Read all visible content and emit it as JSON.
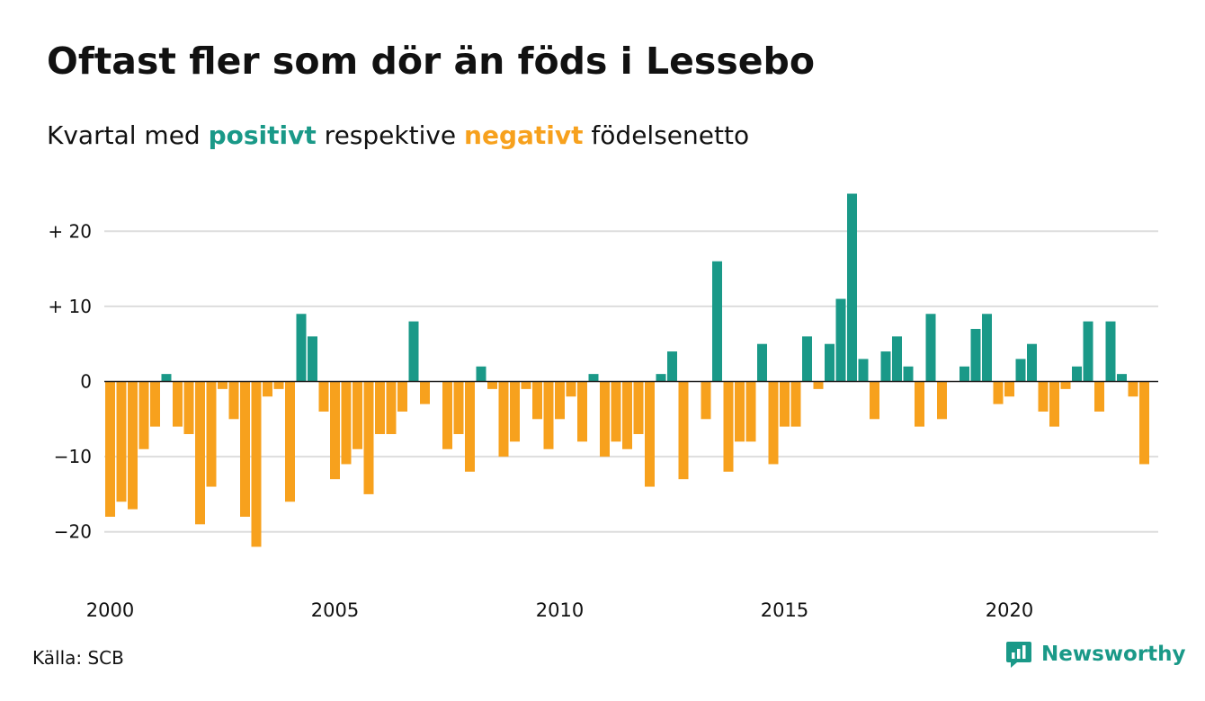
{
  "chart_data": {
    "type": "bar",
    "title": "Oftast fler som dör än föds i Lessebo",
    "subtitle": {
      "prefix": "Kvartal med ",
      "positive_word": "positivt",
      "middle": " respektive ",
      "negative_word": "negativt",
      "suffix": " födelsenetto"
    },
    "x_start_year": 2000,
    "periods_per_year": 4,
    "values": [
      -18,
      -16,
      -17,
      -9,
      -6,
      1,
      -6,
      -7,
      -19,
      -14,
      -1,
      -5,
      -18,
      -22,
      -2,
      -1,
      -16,
      9,
      6,
      -4,
      -13,
      -11,
      -9,
      -15,
      -7,
      -7,
      -4,
      8,
      -3,
      0,
      -9,
      -7,
      -12,
      2,
      -1,
      -10,
      -8,
      -1,
      -5,
      -9,
      -5,
      -2,
      -8,
      1,
      -10,
      -8,
      -9,
      -7,
      -14,
      1,
      4,
      -13,
      0,
      -5,
      16,
      -12,
      -8,
      -8,
      5,
      -11,
      -6,
      -6,
      6,
      -1,
      5,
      11,
      25,
      3,
      -5,
      4,
      6,
      2,
      -6,
      9,
      -5,
      0,
      2,
      7,
      9,
      -3,
      -2,
      3,
      5,
      -4,
      -6,
      -1,
      2,
      8,
      -4,
      8,
      1,
      -2,
      -11
    ],
    "ylim": [
      -26,
      26
    ],
    "y_ticks": [
      20,
      10,
      0,
      -10,
      -20
    ],
    "y_tick_labels": [
      "+ 20",
      "+ 10",
      "0",
      "−10",
      "−20"
    ],
    "x_tick_labels": [
      "2000",
      "2005",
      "2010",
      "2015",
      "2020"
    ],
    "x_tick_years": [
      2000,
      2005,
      2010,
      2015,
      2020
    ],
    "grid": true,
    "legend": "none",
    "colors": {
      "positive": "#1a9988",
      "negative": "#f7a11d",
      "grid": "#dddddd"
    }
  },
  "footer": {
    "source": "Källa: SCB",
    "brand": "Newsworthy",
    "brand_icon": "newsworthy-logo-icon"
  }
}
